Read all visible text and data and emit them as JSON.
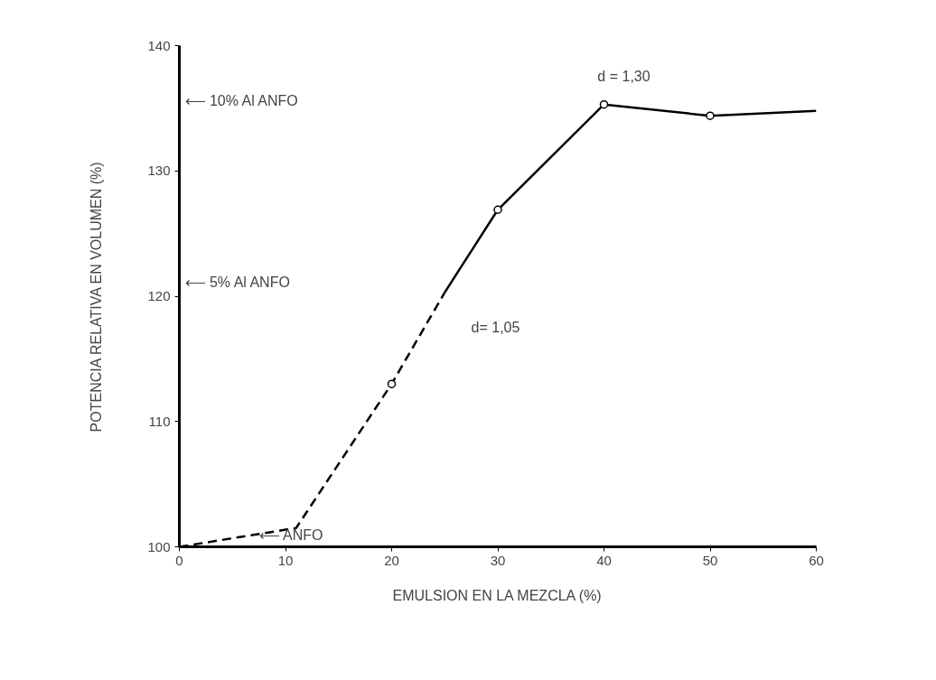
{
  "chart_data": {
    "type": "line",
    "xlabel": "EMULSION EN LA MEZCLA (%)",
    "ylabel": "POTENCIA RELATIVA EN VOLUMEN (%)",
    "xlim": [
      0,
      60
    ],
    "ylim": [
      100,
      140
    ],
    "xticks": [
      0,
      10,
      20,
      30,
      40,
      50,
      60
    ],
    "yticks": [
      100,
      110,
      120,
      130,
      140
    ],
    "grid": false,
    "series": [
      {
        "color": "#000000",
        "line_style": "dashed",
        "marker": "none",
        "x": [
          0,
          11,
          20,
          25
        ],
        "values": [
          100,
          101.5,
          113,
          120.3
        ]
      },
      {
        "color": "#000000",
        "line_style": "solid",
        "marker": "none",
        "x": [
          25,
          30,
          40,
          50,
          60
        ],
        "values": [
          120.3,
          126.9,
          135.3,
          134.4,
          134.8
        ]
      },
      {
        "type": "scatter",
        "color": "#000000",
        "marker": "circle",
        "x": [
          20,
          30,
          40,
          50
        ],
        "values": [
          113,
          126.9,
          135.3,
          134.4
        ]
      }
    ],
    "annotations": [
      "⟵ 10% Al ANFO",
      "⟵ 5% Al ANFO",
      "⟵ ANFO",
      "d = 1,30",
      "d= 1,05"
    ]
  }
}
